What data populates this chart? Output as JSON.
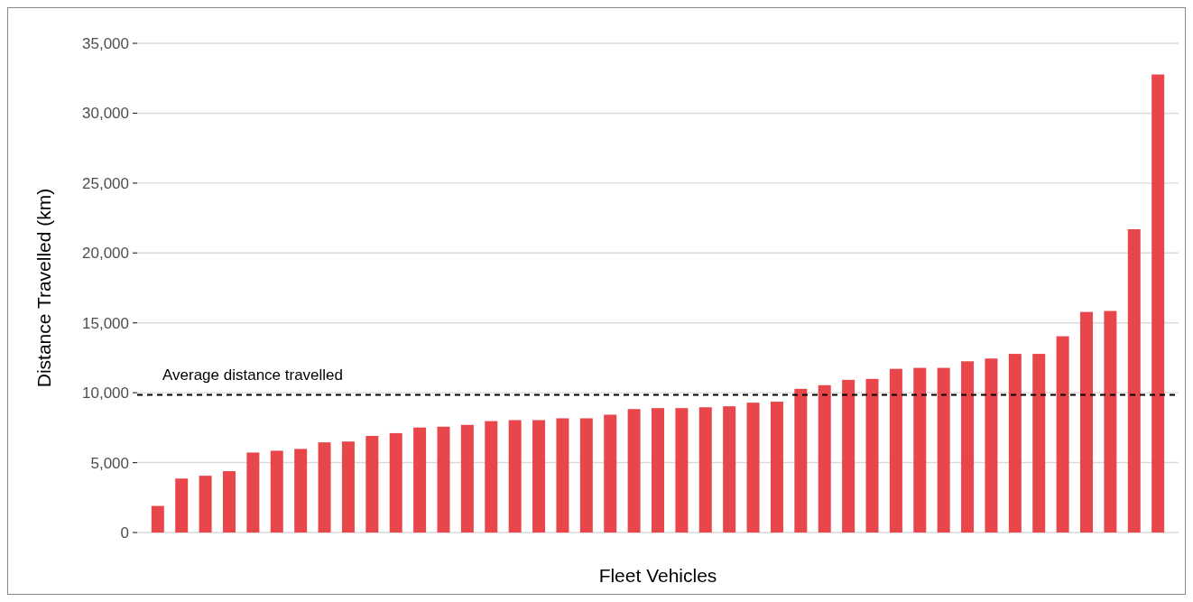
{
  "chart_data": {
    "type": "bar",
    "xlabel": "Fleet Vehicles",
    "ylabel": "Distance Travelled (km)",
    "categories": [
      null,
      null,
      null,
      null,
      null,
      null,
      null,
      null,
      null,
      null,
      null,
      null,
      null,
      null,
      null,
      null,
      null,
      null,
      null,
      null,
      null,
      null,
      null,
      null,
      null,
      null,
      null,
      null,
      null,
      null,
      null,
      null,
      null,
      null,
      null,
      null,
      null,
      null,
      null,
      null,
      null,
      null,
      null
    ],
    "values": [
      1900,
      3860,
      4060,
      4390,
      5720,
      5850,
      5980,
      6450,
      6510,
      6910,
      7110,
      7510,
      7570,
      7700,
      7970,
      8040,
      8040,
      8170,
      8170,
      8430,
      8830,
      8900,
      8900,
      8960,
      9030,
      9290,
      9360,
      10280,
      10540,
      10920,
      10990,
      11710,
      11780,
      11780,
      12250,
      12450,
      12780,
      12780,
      14040,
      15780,
      15850,
      21700,
      32770
    ],
    "color": "#e8464b",
    "ylim": [
      0,
      35000
    ],
    "yticks": [
      {
        "value": 0,
        "label": "0"
      },
      {
        "value": 5000,
        "label": "5,000"
      },
      {
        "value": 10000,
        "label": "10,000"
      },
      {
        "value": 15000,
        "label": "15,000"
      },
      {
        "value": 20000,
        "label": "20,000"
      },
      {
        "value": 25000,
        "label": "25,000"
      },
      {
        "value": 30000,
        "label": "30,000"
      },
      {
        "value": 35000,
        "label": "35,000"
      }
    ],
    "grid": "y",
    "ref_lines": [
      {
        "axis": "y",
        "value": 9850,
        "label": "Average distance travelled",
        "color": "#000000",
        "line_style": "dashed"
      }
    ]
  }
}
